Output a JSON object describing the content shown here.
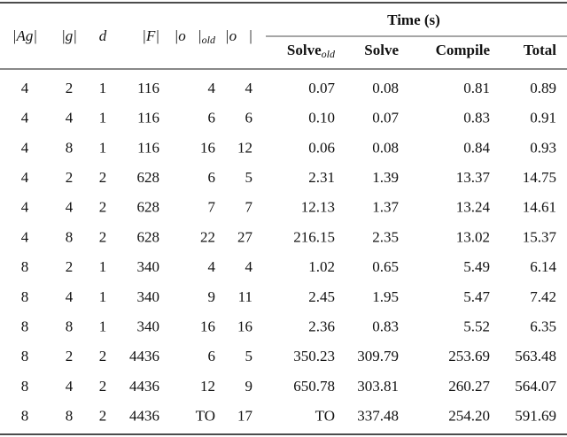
{
  "table": {
    "group_header": "Time (s)",
    "columns": [
      {
        "text": "|Ag|"
      },
      {
        "text": "|g|"
      },
      {
        "text": "d"
      },
      {
        "text": "|F|"
      },
      {
        "text": "|o⃗|",
        "sub": "old"
      },
      {
        "text": "|o⃗|"
      },
      {
        "text": "Solve",
        "sub": "old"
      },
      {
        "text": "Solve"
      },
      {
        "text": "Compile"
      },
      {
        "text": "Total"
      }
    ],
    "rows": [
      [
        "4",
        "2",
        "1",
        "116",
        "4",
        "4",
        "0.07",
        "0.08",
        "0.81",
        "0.89"
      ],
      [
        "4",
        "4",
        "1",
        "116",
        "6",
        "6",
        "0.10",
        "0.07",
        "0.83",
        "0.91"
      ],
      [
        "4",
        "8",
        "1",
        "116",
        "16",
        "12",
        "0.06",
        "0.08",
        "0.84",
        "0.93"
      ],
      [
        "4",
        "2",
        "2",
        "628",
        "6",
        "5",
        "2.31",
        "1.39",
        "13.37",
        "14.75"
      ],
      [
        "4",
        "4",
        "2",
        "628",
        "7",
        "7",
        "12.13",
        "1.37",
        "13.24",
        "14.61"
      ],
      [
        "4",
        "8",
        "2",
        "628",
        "22",
        "27",
        "216.15",
        "2.35",
        "13.02",
        "15.37"
      ],
      [
        "8",
        "2",
        "1",
        "340",
        "4",
        "4",
        "1.02",
        "0.65",
        "5.49",
        "6.14"
      ],
      [
        "8",
        "4",
        "1",
        "340",
        "9",
        "11",
        "2.45",
        "1.95",
        "5.47",
        "7.42"
      ],
      [
        "8",
        "8",
        "1",
        "340",
        "16",
        "16",
        "2.36",
        "0.83",
        "5.52",
        "6.35"
      ],
      [
        "8",
        "2",
        "2",
        "4436",
        "6",
        "5",
        "350.23",
        "309.79",
        "253.69",
        "563.48"
      ],
      [
        "8",
        "4",
        "2",
        "4436",
        "12",
        "9",
        "650.78",
        "303.81",
        "260.27",
        "564.07"
      ],
      [
        "8",
        "8",
        "2",
        "4436",
        "TO",
        "17",
        "TO",
        "337.48",
        "254.20",
        "591.69"
      ]
    ]
  }
}
